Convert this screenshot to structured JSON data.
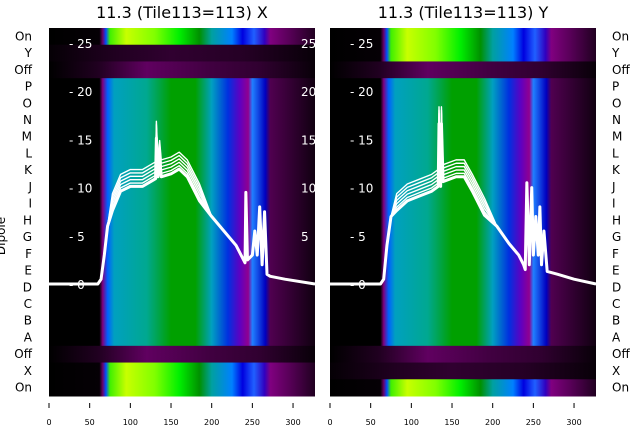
{
  "chart_data": [
    {
      "type": "heatmap",
      "title": "11.3 (Tile113=113) X",
      "ylabel": "Dipole",
      "row_labels": [
        "On",
        "Y",
        "Off",
        "P",
        "O",
        "N",
        "M",
        "L",
        "K",
        "J",
        "I",
        "H",
        "G",
        "F",
        "E",
        "D",
        "C",
        "B",
        "A",
        "Off",
        "X",
        "On"
      ],
      "row_profiles": [
        "bright",
        "dark",
        "offp",
        "dipole",
        "dipole",
        "dipole",
        "dipole",
        "dipole",
        "dipole",
        "dipole",
        "dipole",
        "dipole",
        "dipole",
        "dipole",
        "dipole",
        "dipole",
        "dipole",
        "dipole",
        "dipole",
        "offp",
        "bright",
        "bright"
      ],
      "xticks": [
        0,
        50,
        100,
        150,
        200,
        250,
        300
      ],
      "xlim": [
        0,
        327
      ],
      "yticks": [
        0,
        5,
        10,
        15,
        20,
        25
      ],
      "ylim_overlay": [
        -11.6,
        26.6
      ],
      "line": [
        [
          0,
          0
        ],
        [
          60,
          0
        ],
        [
          64,
          0.5
        ],
        [
          68,
          3
        ],
        [
          72,
          6
        ],
        [
          78,
          8.5
        ],
        [
          88,
          10.5
        ],
        [
          100,
          11
        ],
        [
          115,
          11
        ],
        [
          125,
          11.5
        ],
        [
          131,
          11.8
        ],
        [
          132,
          16
        ],
        [
          134,
          12
        ],
        [
          136,
          14
        ],
        [
          138,
          12
        ],
        [
          150,
          12.3
        ],
        [
          160,
          12.8
        ],
        [
          170,
          12
        ],
        [
          185,
          9.5
        ],
        [
          200,
          7
        ],
        [
          215,
          5.5
        ],
        [
          230,
          4
        ],
        [
          241,
          2.2
        ],
        [
          242,
          9.5
        ],
        [
          244,
          2.5
        ],
        [
          250,
          3
        ],
        [
          253,
          5.5
        ],
        [
          256,
          3
        ],
        [
          259,
          8
        ],
        [
          262,
          2
        ],
        [
          265,
          7.5
        ],
        [
          268,
          1
        ],
        [
          272,
          0.8
        ],
        [
          290,
          0.5
        ],
        [
          327,
          0
        ]
      ]
    },
    {
      "type": "heatmap",
      "title": "11.3 (Tile113=113) Y",
      "row_labels": [
        "On",
        "Y",
        "Off",
        "P",
        "O",
        "N",
        "M",
        "L",
        "K",
        "J",
        "I",
        "H",
        "G",
        "F",
        "E",
        "D",
        "C",
        "B",
        "A",
        "Off",
        "X",
        "On"
      ],
      "row_profiles": [
        "bright",
        "bright",
        "offp",
        "dipole",
        "dipole",
        "dipole",
        "dipole",
        "dipole",
        "dipole",
        "dipole",
        "dipole",
        "dipole",
        "dipole",
        "dipole",
        "dipole",
        "dipole",
        "dipole",
        "dipole",
        "dipole",
        "offp",
        "dark",
        "bright"
      ],
      "xticks": [
        0,
        50,
        100,
        150,
        200,
        250,
        300
      ],
      "xlim": [
        0,
        327
      ],
      "yticks": [
        0,
        5,
        10,
        15,
        20,
        25
      ],
      "ylim_overlay": [
        -11.6,
        26.6
      ],
      "line": [
        [
          0,
          0
        ],
        [
          62,
          0
        ],
        [
          66,
          0.5
        ],
        [
          70,
          4
        ],
        [
          75,
          7
        ],
        [
          82,
          8.5
        ],
        [
          95,
          9.5
        ],
        [
          110,
          10
        ],
        [
          125,
          10.5
        ],
        [
          133,
          11
        ],
        [
          134,
          17.5
        ],
        [
          136,
          11
        ],
        [
          137,
          17.5
        ],
        [
          139,
          11.5
        ],
        [
          155,
          12
        ],
        [
          165,
          12
        ],
        [
          175,
          10.5
        ],
        [
          190,
          8
        ],
        [
          205,
          6
        ],
        [
          220,
          4.2
        ],
        [
          232,
          3
        ],
        [
          238,
          2
        ],
        [
          240,
          1.5
        ],
        [
          242,
          10.5
        ],
        [
          245,
          2
        ],
        [
          248,
          10
        ],
        [
          250,
          3
        ],
        [
          253,
          7
        ],
        [
          256,
          3
        ],
        [
          258,
          8
        ],
        [
          260,
          2
        ],
        [
          263,
          5.5
        ],
        [
          267,
          1.3
        ],
        [
          280,
          1
        ],
        [
          300,
          0.5
        ],
        [
          327,
          0
        ]
      ]
    }
  ],
  "profiles": {
    "bright": [
      [
        0,
        "#000000"
      ],
      [
        62,
        "#050005"
      ],
      [
        66,
        "#6a006a"
      ],
      [
        70,
        "#0050ff"
      ],
      [
        75,
        "#40f000"
      ],
      [
        95,
        "#c8ff00"
      ],
      [
        130,
        "#80ff00"
      ],
      [
        160,
        "#00f000"
      ],
      [
        185,
        "#009000"
      ],
      [
        200,
        "#00a0a0"
      ],
      [
        225,
        "#0080ff"
      ],
      [
        238,
        "#0000e0"
      ],
      [
        252,
        "#2060ff"
      ],
      [
        265,
        "#3000c0"
      ],
      [
        272,
        "#800080"
      ],
      [
        300,
        "#500050"
      ],
      [
        327,
        "#200020"
      ]
    ],
    "dipole": [
      [
        0,
        "#000000"
      ],
      [
        62,
        "#000000"
      ],
      [
        66,
        "#800080"
      ],
      [
        72,
        "#0060ff"
      ],
      [
        80,
        "#00a0c0"
      ],
      [
        120,
        "#00a890"
      ],
      [
        150,
        "#00a000"
      ],
      [
        180,
        "#00a000"
      ],
      [
        200,
        "#00a0c0"
      ],
      [
        220,
        "#0030e0"
      ],
      [
        235,
        "#6000c0"
      ],
      [
        245,
        "#900090"
      ],
      [
        250,
        "#2080ff"
      ],
      [
        266,
        "#0000c0"
      ],
      [
        272,
        "#500050"
      ],
      [
        327,
        "#100010"
      ]
    ],
    "dark": [
      [
        0,
        "#050005"
      ],
      [
        80,
        "#200020"
      ],
      [
        150,
        "#300030"
      ],
      [
        240,
        "#250025"
      ],
      [
        327,
        "#080008"
      ]
    ],
    "offp": [
      [
        0,
        "#000000"
      ],
      [
        60,
        "#200020"
      ],
      [
        120,
        "#600060"
      ],
      [
        200,
        "#400040"
      ],
      [
        260,
        "#300030"
      ],
      [
        327,
        "#080008"
      ]
    ]
  }
}
